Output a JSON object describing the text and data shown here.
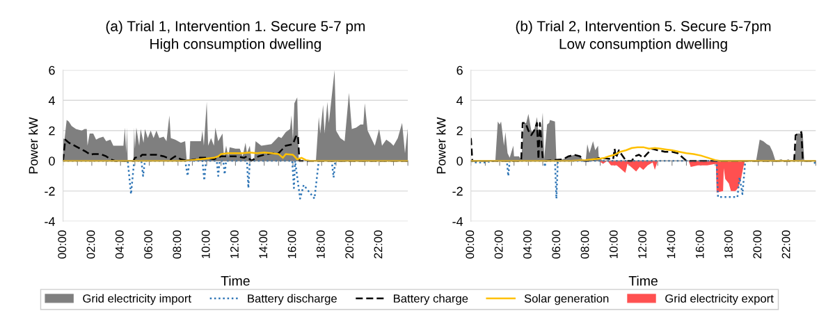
{
  "chart_data": [
    {
      "type": "area",
      "title": "(a) Trial 1, Intervention 1. Secure 5-7 pm\nHigh consumption dwelling",
      "xlabel": "Time",
      "ylabel": "Power kW",
      "xlim": [
        0,
        24
      ],
      "ylim": [
        -4,
        6
      ],
      "yticks": [
        -4,
        -2,
        0,
        2,
        4,
        6
      ],
      "xticks": [
        {
          "value": 0,
          "label": "00:00"
        },
        {
          "value": 1,
          "label": null
        },
        {
          "value": 2,
          "label": "02:00"
        },
        {
          "value": 3,
          "label": null
        },
        {
          "value": 4,
          "label": "04:00"
        },
        {
          "value": 5,
          "label": null
        },
        {
          "value": 6,
          "label": "06:00"
        },
        {
          "value": 7,
          "label": null
        },
        {
          "value": 8,
          "label": "08:00"
        },
        {
          "value": 9,
          "label": null
        },
        {
          "value": 10,
          "label": "10:00"
        },
        {
          "value": 11,
          "label": null
        },
        {
          "value": 12,
          "label": "12:00"
        },
        {
          "value": 13,
          "label": null
        },
        {
          "value": 14,
          "label": "14:00"
        },
        {
          "value": 15,
          "label": null
        },
        {
          "value": 16,
          "label": "16:00"
        },
        {
          "value": 17,
          "label": null
        },
        {
          "value": 18,
          "label": "18:00"
        },
        {
          "value": 19,
          "label": null
        },
        {
          "value": 20,
          "label": "20:00"
        },
        {
          "value": 21,
          "label": null
        },
        {
          "value": 22,
          "label": "22:00"
        },
        {
          "value": 23,
          "label": null
        },
        {
          "value": 24,
          "label": null
        }
      ],
      "grid": "y",
      "legend": "bottom",
      "series": [
        {
          "name": "Grid electricity import",
          "color": "#7f7f7f",
          "x": [
            0,
            0.1,
            0.25,
            0.4,
            0.6,
            0.9,
            1.3,
            1.5,
            1.65,
            1.7,
            1.85,
            2.1,
            2.3,
            2.5,
            2.8,
            3.0,
            3.3,
            3.5,
            4.0,
            4.2,
            4.3,
            4.4,
            4.45,
            4.5,
            4.9,
            4.95,
            5.0,
            5.1,
            5.3,
            5.4,
            5.6,
            5.7,
            5.9,
            6.1,
            6.3,
            6.5,
            6.7,
            7.0,
            7.2,
            7.4,
            7.5,
            7.8,
            8.2,
            8.5,
            8.6,
            8.8,
            8.85,
            9.3,
            9.6,
            9.7,
            9.8,
            10.0,
            10.1,
            10.3,
            10.5,
            10.6,
            10.8,
            11.1,
            11.2,
            11.35,
            11.5,
            11.6,
            12.0,
            12.3,
            12.5,
            12.7,
            12.8,
            13.0,
            13.1,
            13.3,
            13.4,
            13.8,
            14.5,
            15.0,
            15.2,
            15.5,
            15.8,
            15.9,
            16.0,
            16.1,
            16.3,
            16.4,
            16.6,
            17.6,
            17.8,
            17.9,
            18.1,
            18.2,
            18.4,
            18.5,
            18.9,
            19.0,
            19.3,
            19.6,
            19.9,
            20.1,
            20.4,
            20.7,
            20.9,
            21.0,
            21.2,
            21.5,
            21.7,
            22.0,
            22.2,
            22.5,
            22.8,
            23.0,
            23.3,
            23.6,
            23.8,
            24.0
          ],
          "values": [
            1.5,
            1.4,
            2.7,
            2.6,
            2.3,
            2.1,
            2.0,
            2.1,
            2.1,
            1.0,
            1.8,
            1.8,
            1.4,
            1.5,
            1.6,
            1.3,
            1.4,
            1.0,
            1.0,
            1.0,
            2.2,
            0.5,
            2.2,
            0,
            0,
            2.2,
            0.8,
            2.2,
            1.0,
            2.1,
            1.2,
            2.1,
            1.5,
            2.0,
            1.5,
            2.0,
            1.5,
            1.6,
            1.3,
            3.0,
            1.5,
            1.4,
            1.2,
            1.3,
            0.1,
            0.1,
            1.3,
            1.3,
            1.3,
            2.0,
            1.0,
            3.9,
            1.0,
            1.5,
            1.0,
            2.2,
            1.3,
            1.8,
            0.2,
            1.0,
            0.3,
            0.9,
            0.8,
            0.8,
            0.3,
            1.2,
            0.5,
            1.0,
            0.1,
            0.1,
            1.3,
            1.0,
            1.1,
            1.6,
            1.5,
            1.9,
            2.1,
            3.0,
            1.4,
            3.8,
            4.2,
            0.2,
            0,
            0,
            2.9,
            1.8,
            3.7,
            1.8,
            3.9,
            2.5,
            6.0,
            2.0,
            1.5,
            1.3,
            4.5,
            2.1,
            2.2,
            2.4,
            2.4,
            3.8,
            2.0,
            1.4,
            1.0,
            2.1,
            1.0,
            1.4,
            1.2,
            1.0,
            1.5,
            2.5,
            0.5,
            2.2
          ]
        },
        {
          "name": "Battery discharge",
          "type": "line",
          "line_style": "dotted",
          "color": "#2e75b6",
          "x": [
            0,
            4.5,
            4.73,
            4.95,
            5.45,
            5.57,
            5.7,
            8.5,
            8.67,
            8.8,
            9.7,
            9.83,
            9.95,
            10.7,
            10.8,
            10.9,
            11.15,
            11.25,
            11.35,
            12.8,
            12.9,
            13.0,
            15.95,
            16.07,
            16.15,
            16.5,
            16.75,
            17.5,
            17.8,
            18.7,
            18.83,
            18.95,
            24
          ],
          "values": [
            0,
            0,
            -2.2,
            0,
            0,
            -1.0,
            0,
            0,
            -1.0,
            0,
            0,
            -1.3,
            0,
            0,
            -1.0,
            0,
            0,
            -0.9,
            0,
            0,
            -1.8,
            0,
            0,
            -1.8,
            0,
            -2.5,
            -1.6,
            -2.5,
            0,
            0,
            -1.1,
            0,
            0
          ]
        },
        {
          "name": "Battery charge",
          "type": "line",
          "line_style": "dashed",
          "color": "#000000",
          "x": [
            0,
            0.15,
            0.4,
            0.8,
            1.2,
            1.6,
            1.9,
            2.1,
            2.6,
            3.0,
            3.3,
            3.6,
            4.9,
            5.0,
            5.4,
            5.5,
            6.5,
            7.0,
            7.5,
            7.8,
            8.2,
            8.6,
            9.2,
            9.5,
            10.0,
            10.5,
            11.0,
            12.0,
            12.6,
            12.8,
            13.1,
            13.6,
            14.0,
            14.5,
            15.0,
            15.2,
            15.5,
            16.0,
            16.2,
            16.35,
            16.45,
            24
          ],
          "values": [
            0,
            1.4,
            1.2,
            1.0,
            0.8,
            0.6,
            0.4,
            0.45,
            0.45,
            0.3,
            0.1,
            0,
            0,
            0.2,
            0.3,
            0.4,
            0.4,
            0.3,
            0.1,
            0.3,
            0.1,
            0,
            0.1,
            0.2,
            0.2,
            0.1,
            0.3,
            0.3,
            0.2,
            0.3,
            0,
            0.3,
            0.4,
            0.5,
            0.5,
            0.7,
            1.0,
            1.1,
            1.6,
            1.7,
            0,
            0
          ]
        },
        {
          "name": "Solar generation",
          "type": "line",
          "line_style": "solid",
          "color": "#ffc000",
          "x": [
            0,
            8.5,
            9.0,
            9.5,
            10.0,
            10.5,
            10.8,
            11.0,
            11.5,
            12.0,
            12.5,
            13.0,
            13.5,
            14.0,
            14.5,
            15.0,
            15.3,
            15.5,
            16.0,
            16.1,
            16.3,
            16.6,
            16.9,
            17.2,
            24
          ],
          "values": [
            0,
            0,
            0.05,
            0.1,
            0.15,
            0.2,
            0.3,
            0.45,
            0.5,
            0.5,
            0.5,
            0.55,
            0.5,
            0.55,
            0.5,
            0.45,
            0.2,
            0.45,
            0.4,
            0.3,
            0.1,
            0.2,
            0.05,
            0,
            0
          ]
        }
      ]
    },
    {
      "type": "area",
      "title": "(b) Trial 2, Intervention 5. Secure 5-7pm\nLow consumption dwelling",
      "xlabel": "Time",
      "ylabel": "Power kW",
      "xlim": [
        0,
        24
      ],
      "ylim": [
        -4,
        6
      ],
      "yticks": [
        -4,
        -2,
        0,
        2,
        4,
        6
      ],
      "xticks": [
        {
          "value": 0,
          "label": "00:00"
        },
        {
          "value": 1,
          "label": null
        },
        {
          "value": 2,
          "label": "02:00"
        },
        {
          "value": 3,
          "label": null
        },
        {
          "value": 4,
          "label": "04:00"
        },
        {
          "value": 5,
          "label": null
        },
        {
          "value": 6,
          "label": "06:00"
        },
        {
          "value": 7,
          "label": null
        },
        {
          "value": 8,
          "label": "08:00"
        },
        {
          "value": 9,
          "label": null
        },
        {
          "value": 10,
          "label": "10:00"
        },
        {
          "value": 11,
          "label": null
        },
        {
          "value": 12,
          "label": "12:00"
        },
        {
          "value": 13,
          "label": null
        },
        {
          "value": 14,
          "label": "14:00"
        },
        {
          "value": 15,
          "label": null
        },
        {
          "value": 16,
          "label": "16:00"
        },
        {
          "value": 17,
          "label": null
        },
        {
          "value": 18,
          "label": "18:00"
        },
        {
          "value": 19,
          "label": null
        },
        {
          "value": 20,
          "label": "20:00"
        },
        {
          "value": 21,
          "label": null
        },
        {
          "value": 22,
          "label": "22:00"
        },
        {
          "value": 23,
          "label": null
        },
        {
          "value": 24,
          "label": null
        }
      ],
      "grid": "y",
      "legend": "bottom",
      "series": [
        {
          "name": "Grid electricity import",
          "color": "#7f7f7f",
          "x": [
            0,
            1.7,
            1.87,
            2.0,
            2.1,
            2.3,
            2.4,
            2.55,
            2.7,
            2.95,
            3.0,
            3.35,
            3.5,
            3.7,
            3.85,
            4.0,
            4.2,
            4.35,
            4.6,
            4.7,
            4.85,
            5.0,
            5.1,
            5.3,
            5.45,
            5.5,
            5.85,
            5.95,
            6.4,
            6.85,
            7.2,
            7.6,
            7.85,
            8.0,
            8.1,
            8.25,
            8.5,
            8.65,
            8.85,
            8.9,
            9.2,
            19.2,
            19.3,
            19.4,
            19.85,
            20.1,
            20.35,
            20.6,
            20.8,
            21.0,
            21.2,
            21.6,
            21.8,
            22.1,
            22.25,
            22.5,
            22.7,
            23.1,
            23.2,
            24
          ],
          "values": [
            0,
            0,
            2.6,
            2.4,
            2.6,
            1.0,
            1.9,
            0.5,
            0.2,
            1.0,
            0.3,
            0.3,
            0.05,
            2.5,
            2.5,
            3.1,
            2.0,
            1.8,
            2.9,
            1.8,
            1.5,
            3.2,
            0.1,
            2.4,
            2.5,
            2.7,
            2.6,
            0,
            0.1,
            0.3,
            0.4,
            0.3,
            0,
            0.1,
            1.1,
            0.5,
            1.3,
            0.7,
            1.0,
            0.2,
            0,
            0,
            0.05,
            0,
            0,
            1.4,
            1.3,
            1.1,
            1.0,
            0.6,
            0,
            0.1,
            0,
            0.1,
            0,
            0,
            1.8,
            1.8,
            0,
            0
          ]
        },
        {
          "name": "Grid electricity export",
          "color": "#ff5050",
          "x": [
            0,
            8.9,
            9.2,
            9.5,
            9.75,
            10.15,
            10.75,
            10.9,
            11.5,
            11.75,
            12.0,
            12.3,
            12.65,
            12.8,
            13.0,
            15.15,
            15.3,
            15.8,
            16.45,
            17.05,
            17.1,
            17.55,
            17.6,
            17.7,
            17.95,
            18.1,
            18.4,
            18.6,
            18.8,
            19.05,
            24
          ],
          "values": [
            0,
            0,
            -0.2,
            0,
            -0.3,
            -0.3,
            -0.8,
            -0.2,
            -0.7,
            -0.4,
            -0.6,
            -0.3,
            -0.1,
            -0.6,
            0,
            0,
            -0.4,
            -0.3,
            -0.3,
            -0.2,
            -2.1,
            -2.0,
            -0.5,
            -1.2,
            -1.5,
            -2.0,
            -2.0,
            -1.8,
            -1.2,
            0,
            0
          ]
        },
        {
          "name": "Battery discharge",
          "type": "line",
          "line_style": "dotted",
          "color": "#2e75b6",
          "x": [
            0,
            0.2,
            1.0,
            1.6,
            2.5,
            2.6,
            2.7,
            5.1,
            5.15,
            5.2,
            5.85,
            5.95,
            6.05,
            17.1,
            17.2,
            18.55,
            18.7,
            18.9,
            19.1,
            23.8,
            24
          ],
          "values": [
            0,
            -0.1,
            -0.1,
            0,
            0,
            -1.0,
            0,
            0,
            -0.4,
            0,
            0,
            -2.5,
            0,
            0,
            -2.4,
            -2.4,
            -1.1,
            -2.2,
            0,
            0,
            -0.2
          ]
        },
        {
          "name": "Battery charge",
          "type": "line",
          "line_style": "dashed",
          "color": "#000000",
          "x": [
            0,
            0.1,
            3.5,
            3.6,
            3.8,
            4.0,
            4.2,
            4.4,
            4.6,
            4.7,
            4.8,
            5.0,
            5.1,
            6.4,
            6.8,
            7.2,
            7.6,
            7.85,
            8.2,
            9.0,
            9.9,
            10.0,
            10.1,
            10.3,
            10.5,
            10.8,
            11.2,
            11.4,
            11.7,
            12.0,
            12.3,
            12.6,
            13.0,
            13.5,
            14.0,
            14.4,
            15.0,
            22.5,
            22.6,
            23.0,
            23.1,
            24
          ],
          "values": [
            1.5,
            0,
            0,
            2.5,
            2.5,
            2.0,
            1.7,
            2.0,
            2.5,
            0.1,
            2.5,
            0.1,
            0,
            0.1,
            0.3,
            0.4,
            0.3,
            0,
            0,
            0.2,
            0.1,
            0.8,
            0.2,
            0.7,
            0.4,
            0,
            0,
            0.3,
            0.4,
            0.2,
            0.5,
            0.8,
            0.7,
            0.6,
            0.6,
            0.5,
            0,
            0,
            1.7,
            1.9,
            0,
            0
          ]
        },
        {
          "name": "Solar generation",
          "type": "line",
          "line_style": "solid",
          "color": "#ffc000",
          "x": [
            0,
            7.0,
            7.5,
            8.0,
            8.5,
            9.0,
            9.3,
            9.6,
            10.0,
            10.4,
            10.8,
            11.2,
            11.6,
            12.0,
            12.4,
            12.8,
            13.2,
            13.6,
            14.0,
            14.5,
            15.0,
            15.5,
            16.0,
            16.5,
            17.0,
            17.3,
            24
          ],
          "values": [
            0,
            0,
            0.02,
            0.05,
            0.1,
            0.15,
            0.2,
            0.3,
            0.4,
            0.6,
            0.7,
            0.85,
            0.9,
            0.9,
            0.8,
            0.85,
            0.8,
            0.75,
            0.7,
            0.6,
            0.5,
            0.45,
            0.35,
            0.2,
            0.05,
            0,
            0
          ]
        }
      ]
    }
  ]
}
